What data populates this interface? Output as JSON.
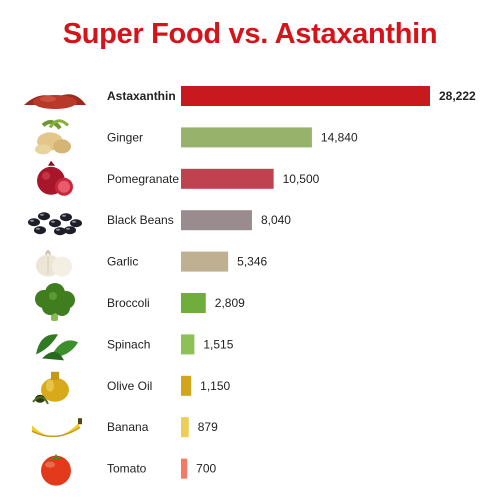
{
  "colors": {
    "title": "#d4141b"
  },
  "chart_data": {
    "type": "bar",
    "orientation": "horizontal",
    "title": "Super Food vs. Astaxanthin",
    "xlabel": "",
    "ylabel": "",
    "xlim": [
      0,
      28222
    ],
    "grid": false,
    "legend": "none",
    "categories": [
      "Astaxanthin",
      "Ginger",
      "Pomegranate",
      "Black Beans",
      "Garlic",
      "Broccoli",
      "Spinach",
      "Olive Oil",
      "Banana",
      "Tomato"
    ],
    "values": [
      28222,
      14840,
      10500,
      8040,
      5346,
      2809,
      1515,
      1150,
      879,
      700
    ],
    "value_labels": [
      "28,222",
      "14,840",
      "10,500",
      "8,040",
      "5,346",
      "2,809",
      "1,515",
      "1,150",
      "879",
      "700"
    ],
    "bar_colors": [
      "#c8191f",
      "#97b36b",
      "#be4250",
      "#9a8b8e",
      "#bfb092",
      "#6fad3c",
      "#8dc056",
      "#d1a51c",
      "#efcd59",
      "#f27a66"
    ],
    "highlight_index": 0,
    "icons": [
      "red-powder-icon",
      "ginger-root-icon",
      "pomegranate-icon",
      "black-beans-icon",
      "garlic-icon",
      "broccoli-icon",
      "spinach-icon",
      "olive-oil-icon",
      "banana-icon",
      "tomato-icon"
    ]
  }
}
